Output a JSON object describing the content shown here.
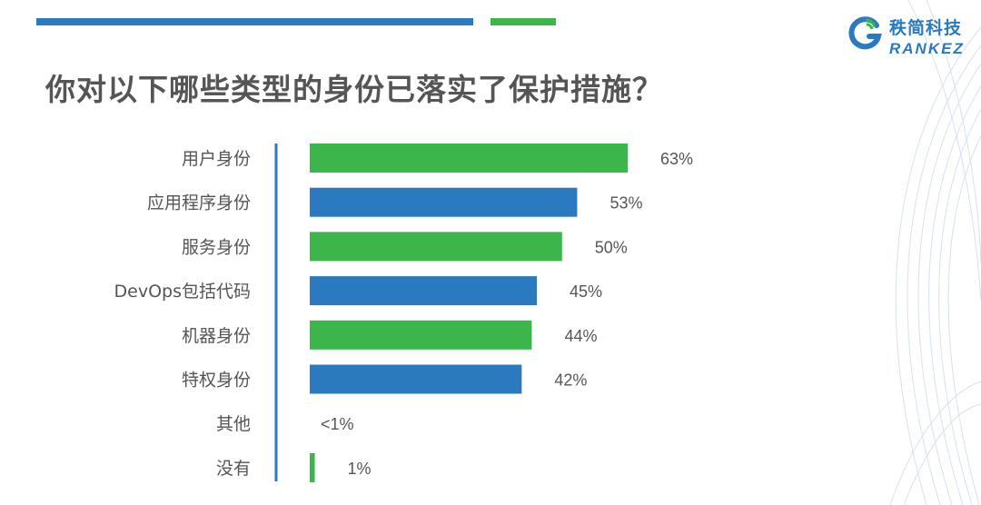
{
  "header": {
    "title": "你对以下哪些类型的身份已落实了保护措施？",
    "logo_cn": "秩简科技",
    "logo_en": "RANKEZ"
  },
  "colors": {
    "green": "#3cb54a",
    "blue": "#2b7ac0",
    "axis": "#2b7ac0",
    "text": "#555555"
  },
  "chart_data": {
    "type": "bar",
    "orientation": "horizontal",
    "xlim": [
      0,
      63
    ],
    "categories": [
      "用户身份",
      "应用程序身份",
      "服务身份",
      "DevOps包括代码",
      "机器身份",
      "特权身份",
      "其他",
      "没有"
    ],
    "values": [
      63,
      53,
      50,
      45,
      44,
      42,
      0,
      1
    ],
    "labels": [
      "63%",
      "53%",
      "50%",
      "45%",
      "44%",
      "42%",
      "<1%",
      "1%"
    ],
    "bar_colors": [
      "#3cb54a",
      "#2b7ac0",
      "#3cb54a",
      "#2b7ac0",
      "#3cb54a",
      "#2b7ac0",
      "#2b7ac0",
      "#3cb54a"
    ]
  }
}
